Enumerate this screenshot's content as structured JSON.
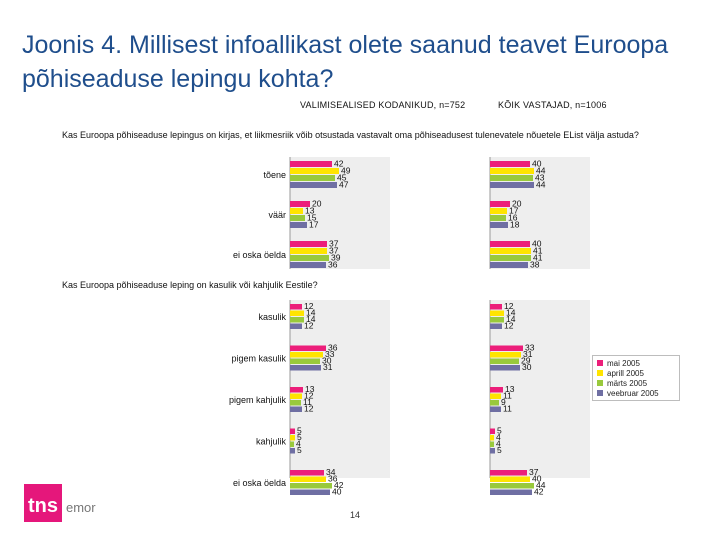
{
  "title": "Joonis 4. Millisest infoallikast olete saanud teavet Euroopa põhiseaduse lepingu kohta?",
  "columns": [
    {
      "header": "VALIMISEALISED KODANIKUD, n=752"
    },
    {
      "header": "KÕIK VASTAJAD, n=1006"
    }
  ],
  "questions": [
    "Kas Euroopa põhiseaduse lepingus on kirjas, et liikmesriik võib otsustada vastavalt oma põhiseadusest tulenevatele nõuetele EList välja astuda?",
    "Kas Euroopa põhiseaduse leping on kasulik või kahjulik Eestile?"
  ],
  "colors": {
    "title": "#1f4e8c",
    "panel_bg": "#eeeeee",
    "series": [
      "#ec1e7a",
      "#ffe400",
      "#99c93c",
      "#6f6fa3"
    ]
  },
  "legend": {
    "items": [
      "mai 2005",
      "aprill 2005",
      "märts 2005",
      "veebruar 2005"
    ]
  },
  "logo": {
    "text": "tns",
    "subtext": "emor"
  },
  "page_number": "14",
  "chart_data": {
    "type": "bar",
    "orientation": "horizontal",
    "series_names": [
      "mai 2005",
      "aprill 2005",
      "märts 2005",
      "veebruar 2005"
    ],
    "xlim": [
      0,
      100
    ],
    "sections": [
      {
        "question_index": 0,
        "categories": [
          "tõene",
          "väär",
          "ei oska öelda"
        ],
        "panels": [
          {
            "column": "VALIMISEALISED KODANIKUD, n=752",
            "values": [
              [
                42,
                49,
                45,
                47
              ],
              [
                20,
                13,
                15,
                17
              ],
              [
                37,
                37,
                39,
                36
              ]
            ]
          },
          {
            "column": "KÕIK VASTAJAD, n=1006",
            "values": [
              [
                40,
                44,
                43,
                44
              ],
              [
                20,
                17,
                16,
                18
              ],
              [
                40,
                41,
                41,
                38
              ]
            ]
          }
        ]
      },
      {
        "question_index": 1,
        "categories": [
          "kasulik",
          "pigem kasulik",
          "pigem kahjulik",
          "kahjulik",
          "ei oska öelda"
        ],
        "panels": [
          {
            "column": "VALIMISEALISED KODANIKUD, n=752",
            "values": [
              [
                12,
                14,
                14,
                12
              ],
              [
                36,
                33,
                30,
                31
              ],
              [
                13,
                12,
                11,
                12
              ],
              [
                5,
                5,
                4,
                5
              ],
              [
                34,
                36,
                42,
                40
              ]
            ]
          },
          {
            "column": "KÕIK VASTAJAD, n=1006",
            "values": [
              [
                12,
                14,
                14,
                12
              ],
              [
                33,
                31,
                29,
                30
              ],
              [
                13,
                11,
                9,
                11
              ],
              [
                5,
                4,
                4,
                5
              ],
              [
                37,
                40,
                44,
                42
              ]
            ]
          }
        ]
      }
    ]
  }
}
